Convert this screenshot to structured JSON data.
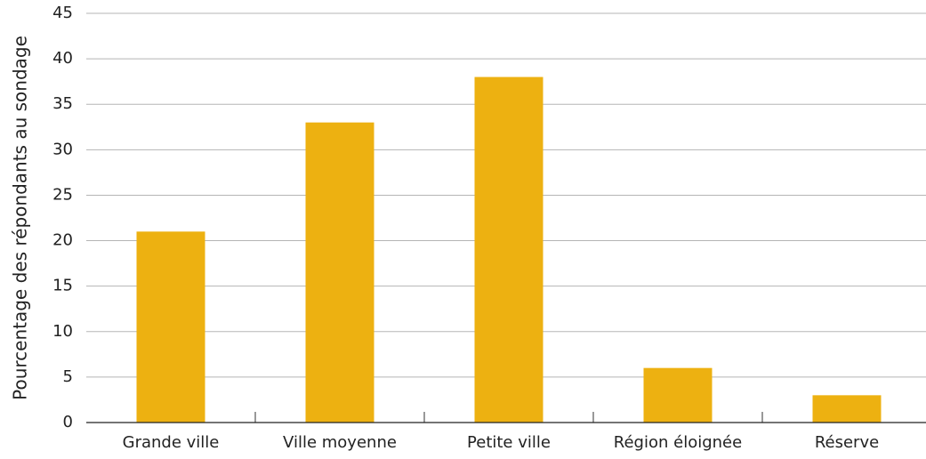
{
  "chart_data": {
    "type": "bar",
    "y_label": "Pourcentage des répondants au sondage",
    "categories": [
      "Grande ville",
      "Ville moyenne",
      "Petite ville",
      "Région éloignée",
      "Réserve"
    ],
    "values": [
      21,
      33,
      38,
      6,
      3
    ],
    "color": "#edb111",
    "ylim": [
      0,
      45
    ],
    "yticks": [
      0,
      5,
      10,
      15,
      20,
      25,
      30,
      35,
      40,
      45
    ],
    "grid": true
  }
}
